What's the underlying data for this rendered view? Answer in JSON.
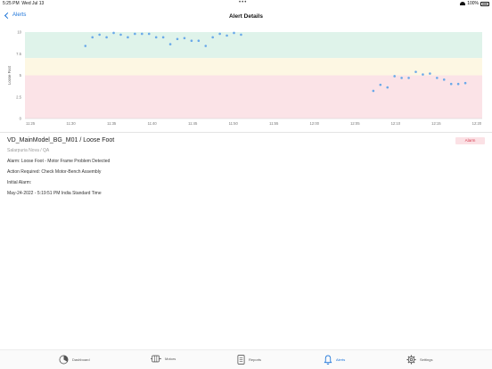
{
  "status_bar": {
    "time": "5:25 PM",
    "date": "Wed Jul 13",
    "battery": "100%",
    "dots": "•••"
  },
  "nav": {
    "back_label": "Alerts",
    "title": "Alert Details"
  },
  "chart_data": {
    "type": "scatter",
    "ylabel": "Loose Foot",
    "ylim": [
      0,
      10
    ],
    "y_ticks": [
      "10",
      "7.5",
      "5",
      "2.5",
      "0"
    ],
    "x_ticks": [
      "11:25",
      "11:30",
      "11:35",
      "11:40",
      "11:45",
      "11:50",
      "11:55",
      "12:00",
      "12:05",
      "12:10",
      "12:15",
      "12:20"
    ],
    "bands": [
      {
        "from": 7,
        "to": 10,
        "color": "#dff3ea"
      },
      {
        "from": 5,
        "to": 7,
        "color": "#fdf7e3"
      },
      {
        "from": 0,
        "to": 5,
        "color": "#fbe3e7"
      }
    ],
    "point_color": "#6aa9e9",
    "points": [
      {
        "x": 11.1,
        "y": 8.4
      },
      {
        "x": 12.4,
        "y": 9.4
      },
      {
        "x": 13.7,
        "y": 9.7
      },
      {
        "x": 15.0,
        "y": 9.4
      },
      {
        "x": 16.3,
        "y": 9.9
      },
      {
        "x": 17.6,
        "y": 9.7
      },
      {
        "x": 18.9,
        "y": 9.4
      },
      {
        "x": 20.2,
        "y": 9.8
      },
      {
        "x": 21.5,
        "y": 9.8
      },
      {
        "x": 22.8,
        "y": 9.8
      },
      {
        "x": 24.1,
        "y": 9.4
      },
      {
        "x": 25.4,
        "y": 9.4
      },
      {
        "x": 26.7,
        "y": 8.6
      },
      {
        "x": 28.0,
        "y": 9.2
      },
      {
        "x": 29.3,
        "y": 9.3
      },
      {
        "x": 30.6,
        "y": 9.0
      },
      {
        "x": 31.9,
        "y": 9.0
      },
      {
        "x": 33.2,
        "y": 8.4
      },
      {
        "x": 34.5,
        "y": 9.4
      },
      {
        "x": 35.8,
        "y": 9.8
      },
      {
        "x": 37.1,
        "y": 9.6
      },
      {
        "x": 38.4,
        "y": 9.9
      },
      {
        "x": 39.7,
        "y": 9.7
      },
      {
        "x": 64.0,
        "y": 3.2
      },
      {
        "x": 65.3,
        "y": 3.9
      },
      {
        "x": 66.6,
        "y": 3.6
      },
      {
        "x": 67.9,
        "y": 4.9
      },
      {
        "x": 69.2,
        "y": 4.7
      },
      {
        "x": 70.5,
        "y": 4.7
      },
      {
        "x": 71.8,
        "y": 5.4
      },
      {
        "x": 73.1,
        "y": 5.1
      },
      {
        "x": 74.4,
        "y": 5.2
      },
      {
        "x": 75.7,
        "y": 4.7
      },
      {
        "x": 77.0,
        "y": 4.5
      },
      {
        "x": 78.3,
        "y": 4.0
      },
      {
        "x": 79.6,
        "y": 4.0
      },
      {
        "x": 80.9,
        "y": 4.1
      }
    ]
  },
  "alert": {
    "title": "VD_MainModel_BG_M01 / Loose Foot",
    "location": "Salarpuria Nova / QA",
    "alarm_line": "Alarm: Loose Foot - Motor Frame Problem Detected",
    "action_line": "Action Required: Check Motor-Bench Assembly",
    "initial_label": "Initial Alarm:",
    "initial_time": "May-24-2022 - 5:19:51 PM India Standard Time",
    "badge": "Alarm"
  },
  "tabs": [
    {
      "label": "Dashboard",
      "icon": "dashboard-icon",
      "active": false
    },
    {
      "label": "Motors",
      "icon": "motors-icon",
      "active": false
    },
    {
      "label": "Reports",
      "icon": "reports-icon",
      "active": false
    },
    {
      "label": "Alerts",
      "icon": "bell-icon",
      "active": true
    },
    {
      "label": "Settings",
      "icon": "gear-icon",
      "active": false
    }
  ]
}
